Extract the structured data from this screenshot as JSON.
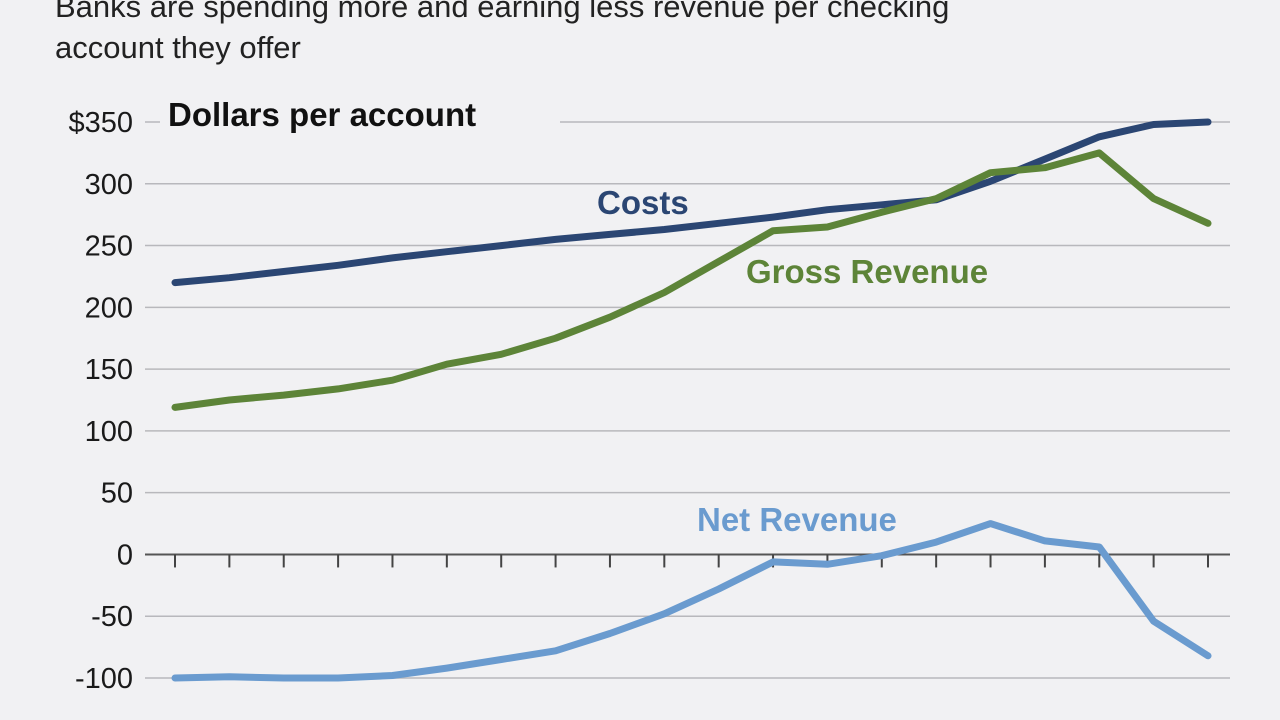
{
  "subtitle": "Banks are spending more and earning less revenue per checking\naccount they offer",
  "chart_data": {
    "type": "line",
    "ylabel": "Dollars per account",
    "ylim": [
      -100,
      350
    ],
    "yticks": [
      {
        "value": 350,
        "label": "$350"
      },
      {
        "value": 300,
        "label": "300"
      },
      {
        "value": 250,
        "label": "250"
      },
      {
        "value": 200,
        "label": "200"
      },
      {
        "value": 150,
        "label": "150"
      },
      {
        "value": 100,
        "label": "100"
      },
      {
        "value": 50,
        "label": "50"
      },
      {
        "value": 0,
        "label": "0"
      },
      {
        "value": -50,
        "label": "-50"
      },
      {
        "value": -100,
        "label": "-100"
      }
    ],
    "x": [
      0,
      1,
      2,
      3,
      4,
      5,
      6,
      7,
      8,
      9,
      10,
      11,
      12,
      13,
      14,
      15,
      16,
      17,
      18,
      19
    ],
    "grid": true,
    "series": [
      {
        "name": "Costs",
        "color": "#2b4673",
        "values": [
          220,
          224,
          229,
          234,
          240,
          245,
          250,
          255,
          259,
          263,
          268,
          273,
          279,
          283,
          287,
          302,
          320,
          338,
          348,
          350
        ]
      },
      {
        "name": "Gross Revenue",
        "color": "#5d8438",
        "values": [
          119,
          125,
          129,
          134,
          141,
          154,
          162,
          175,
          192,
          212,
          237,
          262,
          265,
          277,
          288,
          309,
          313,
          325,
          288,
          268
        ]
      },
      {
        "name": "Net Revenue",
        "color": "#6a9bcf",
        "values": [
          -100,
          -99,
          -100,
          -100,
          -98,
          -92,
          -85,
          -78,
          -64,
          -48,
          -28,
          -6,
          -8,
          -1,
          10,
          25,
          11,
          6,
          -54,
          -82
        ]
      }
    ]
  }
}
